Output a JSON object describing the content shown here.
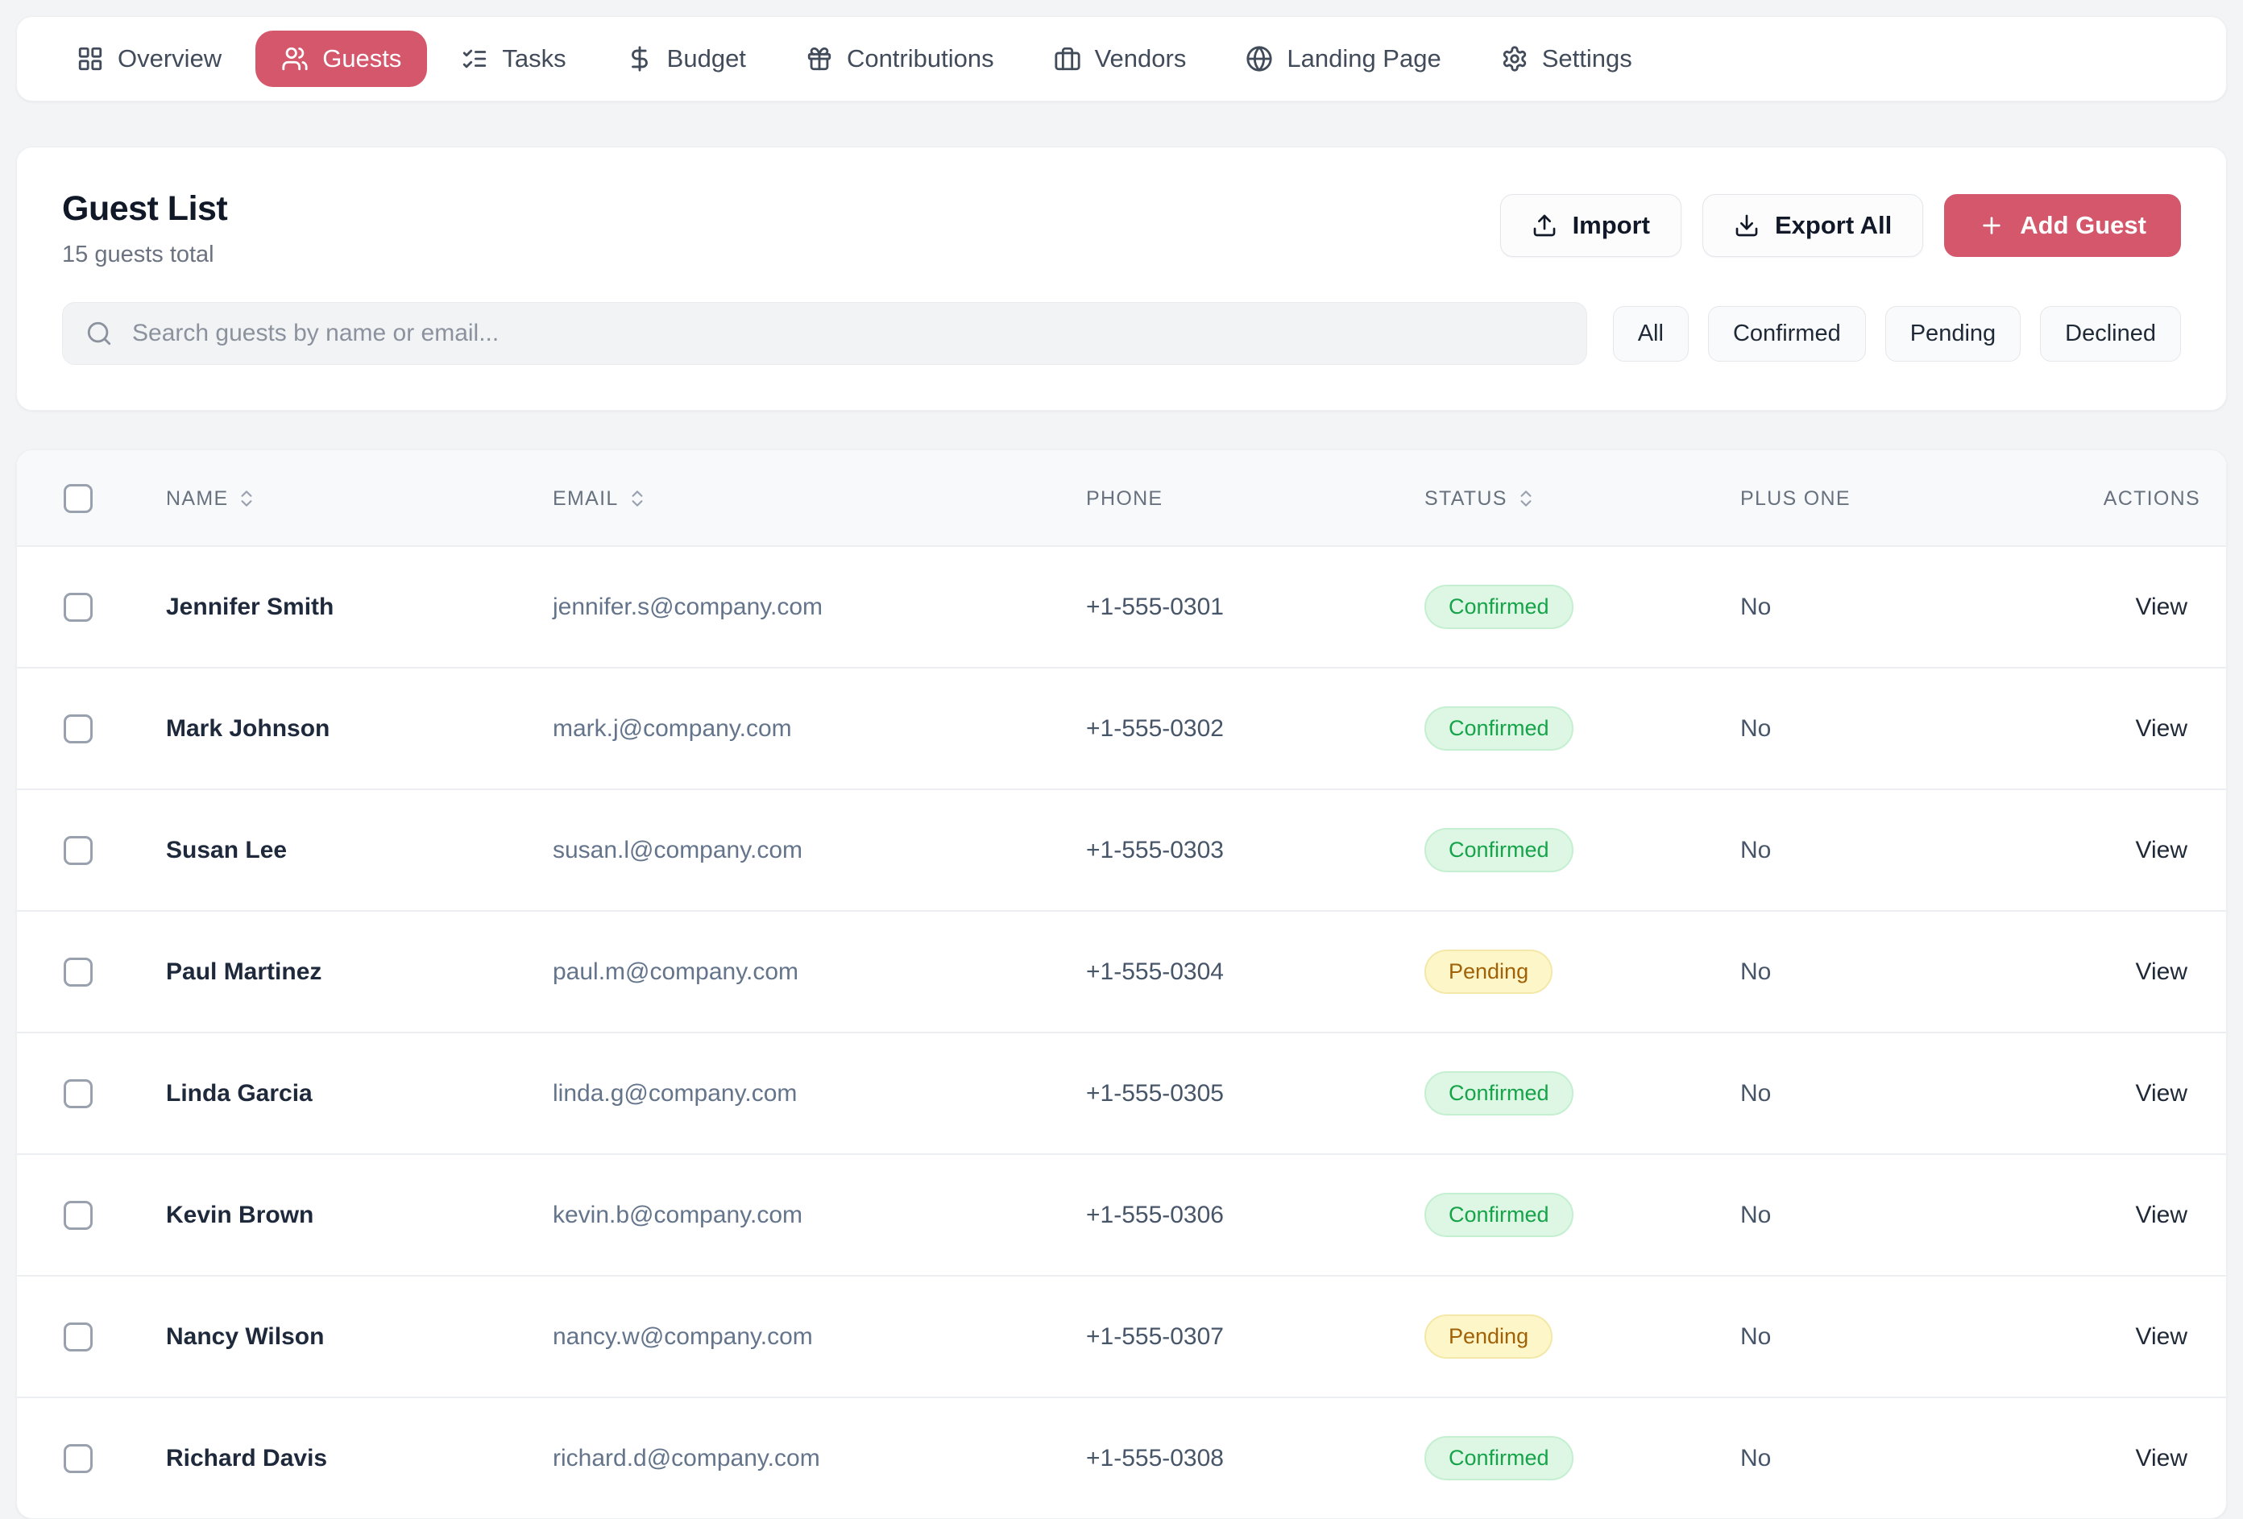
{
  "colors": {
    "accent": "#d4576b",
    "confirmed_badge_bg": "#ddf7e4",
    "confirmed_badge_text": "#16a34a",
    "pending_badge_bg": "#fdf6c9",
    "pending_badge_text": "#a16207"
  },
  "nav": {
    "tabs": [
      {
        "label": "Overview",
        "icon": "grid-icon",
        "active": false
      },
      {
        "label": "Guests",
        "icon": "users-icon",
        "active": true
      },
      {
        "label": "Tasks",
        "icon": "checklist-icon",
        "active": false
      },
      {
        "label": "Budget",
        "icon": "dollar-icon",
        "active": false
      },
      {
        "label": "Contributions",
        "icon": "gift-icon",
        "active": false
      },
      {
        "label": "Vendors",
        "icon": "briefcase-icon",
        "active": false
      },
      {
        "label": "Landing Page",
        "icon": "globe-icon",
        "active": false
      },
      {
        "label": "Settings",
        "icon": "gear-icon",
        "active": false
      }
    ]
  },
  "guest_list": {
    "title": "Guest List",
    "subtitle": "15 guests total",
    "buttons": {
      "import_label": "Import",
      "export_label": "Export All",
      "add_label": "Add Guest"
    },
    "search_placeholder": "Search guests by name or email...",
    "filters": [
      "All",
      "Confirmed",
      "Pending",
      "Declined"
    ]
  },
  "table": {
    "columns": [
      {
        "label": "NAME",
        "sortable": true
      },
      {
        "label": "EMAIL",
        "sortable": true
      },
      {
        "label": "PHONE",
        "sortable": false
      },
      {
        "label": "STATUS",
        "sortable": true
      },
      {
        "label": "PLUS ONE",
        "sortable": false
      },
      {
        "label": "ACTIONS",
        "sortable": false
      }
    ],
    "rows": [
      {
        "name": "Jennifer Smith",
        "email": "jennifer.s@company.com",
        "phone": "+1-555-0301",
        "status": "Confirmed",
        "plus_one": "No",
        "action": "View"
      },
      {
        "name": "Mark Johnson",
        "email": "mark.j@company.com",
        "phone": "+1-555-0302",
        "status": "Confirmed",
        "plus_one": "No",
        "action": "View"
      },
      {
        "name": "Susan Lee",
        "email": "susan.l@company.com",
        "phone": "+1-555-0303",
        "status": "Confirmed",
        "plus_one": "No",
        "action": "View"
      },
      {
        "name": "Paul Martinez",
        "email": "paul.m@company.com",
        "phone": "+1-555-0304",
        "status": "Pending",
        "plus_one": "No",
        "action": "View"
      },
      {
        "name": "Linda Garcia",
        "email": "linda.g@company.com",
        "phone": "+1-555-0305",
        "status": "Confirmed",
        "plus_one": "No",
        "action": "View"
      },
      {
        "name": "Kevin Brown",
        "email": "kevin.b@company.com",
        "phone": "+1-555-0306",
        "status": "Confirmed",
        "plus_one": "No",
        "action": "View"
      },
      {
        "name": "Nancy Wilson",
        "email": "nancy.w@company.com",
        "phone": "+1-555-0307",
        "status": "Pending",
        "plus_one": "No",
        "action": "View"
      },
      {
        "name": "Richard Davis",
        "email": "richard.d@company.com",
        "phone": "+1-555-0308",
        "status": "Confirmed",
        "plus_one": "No",
        "action": "View"
      }
    ]
  }
}
